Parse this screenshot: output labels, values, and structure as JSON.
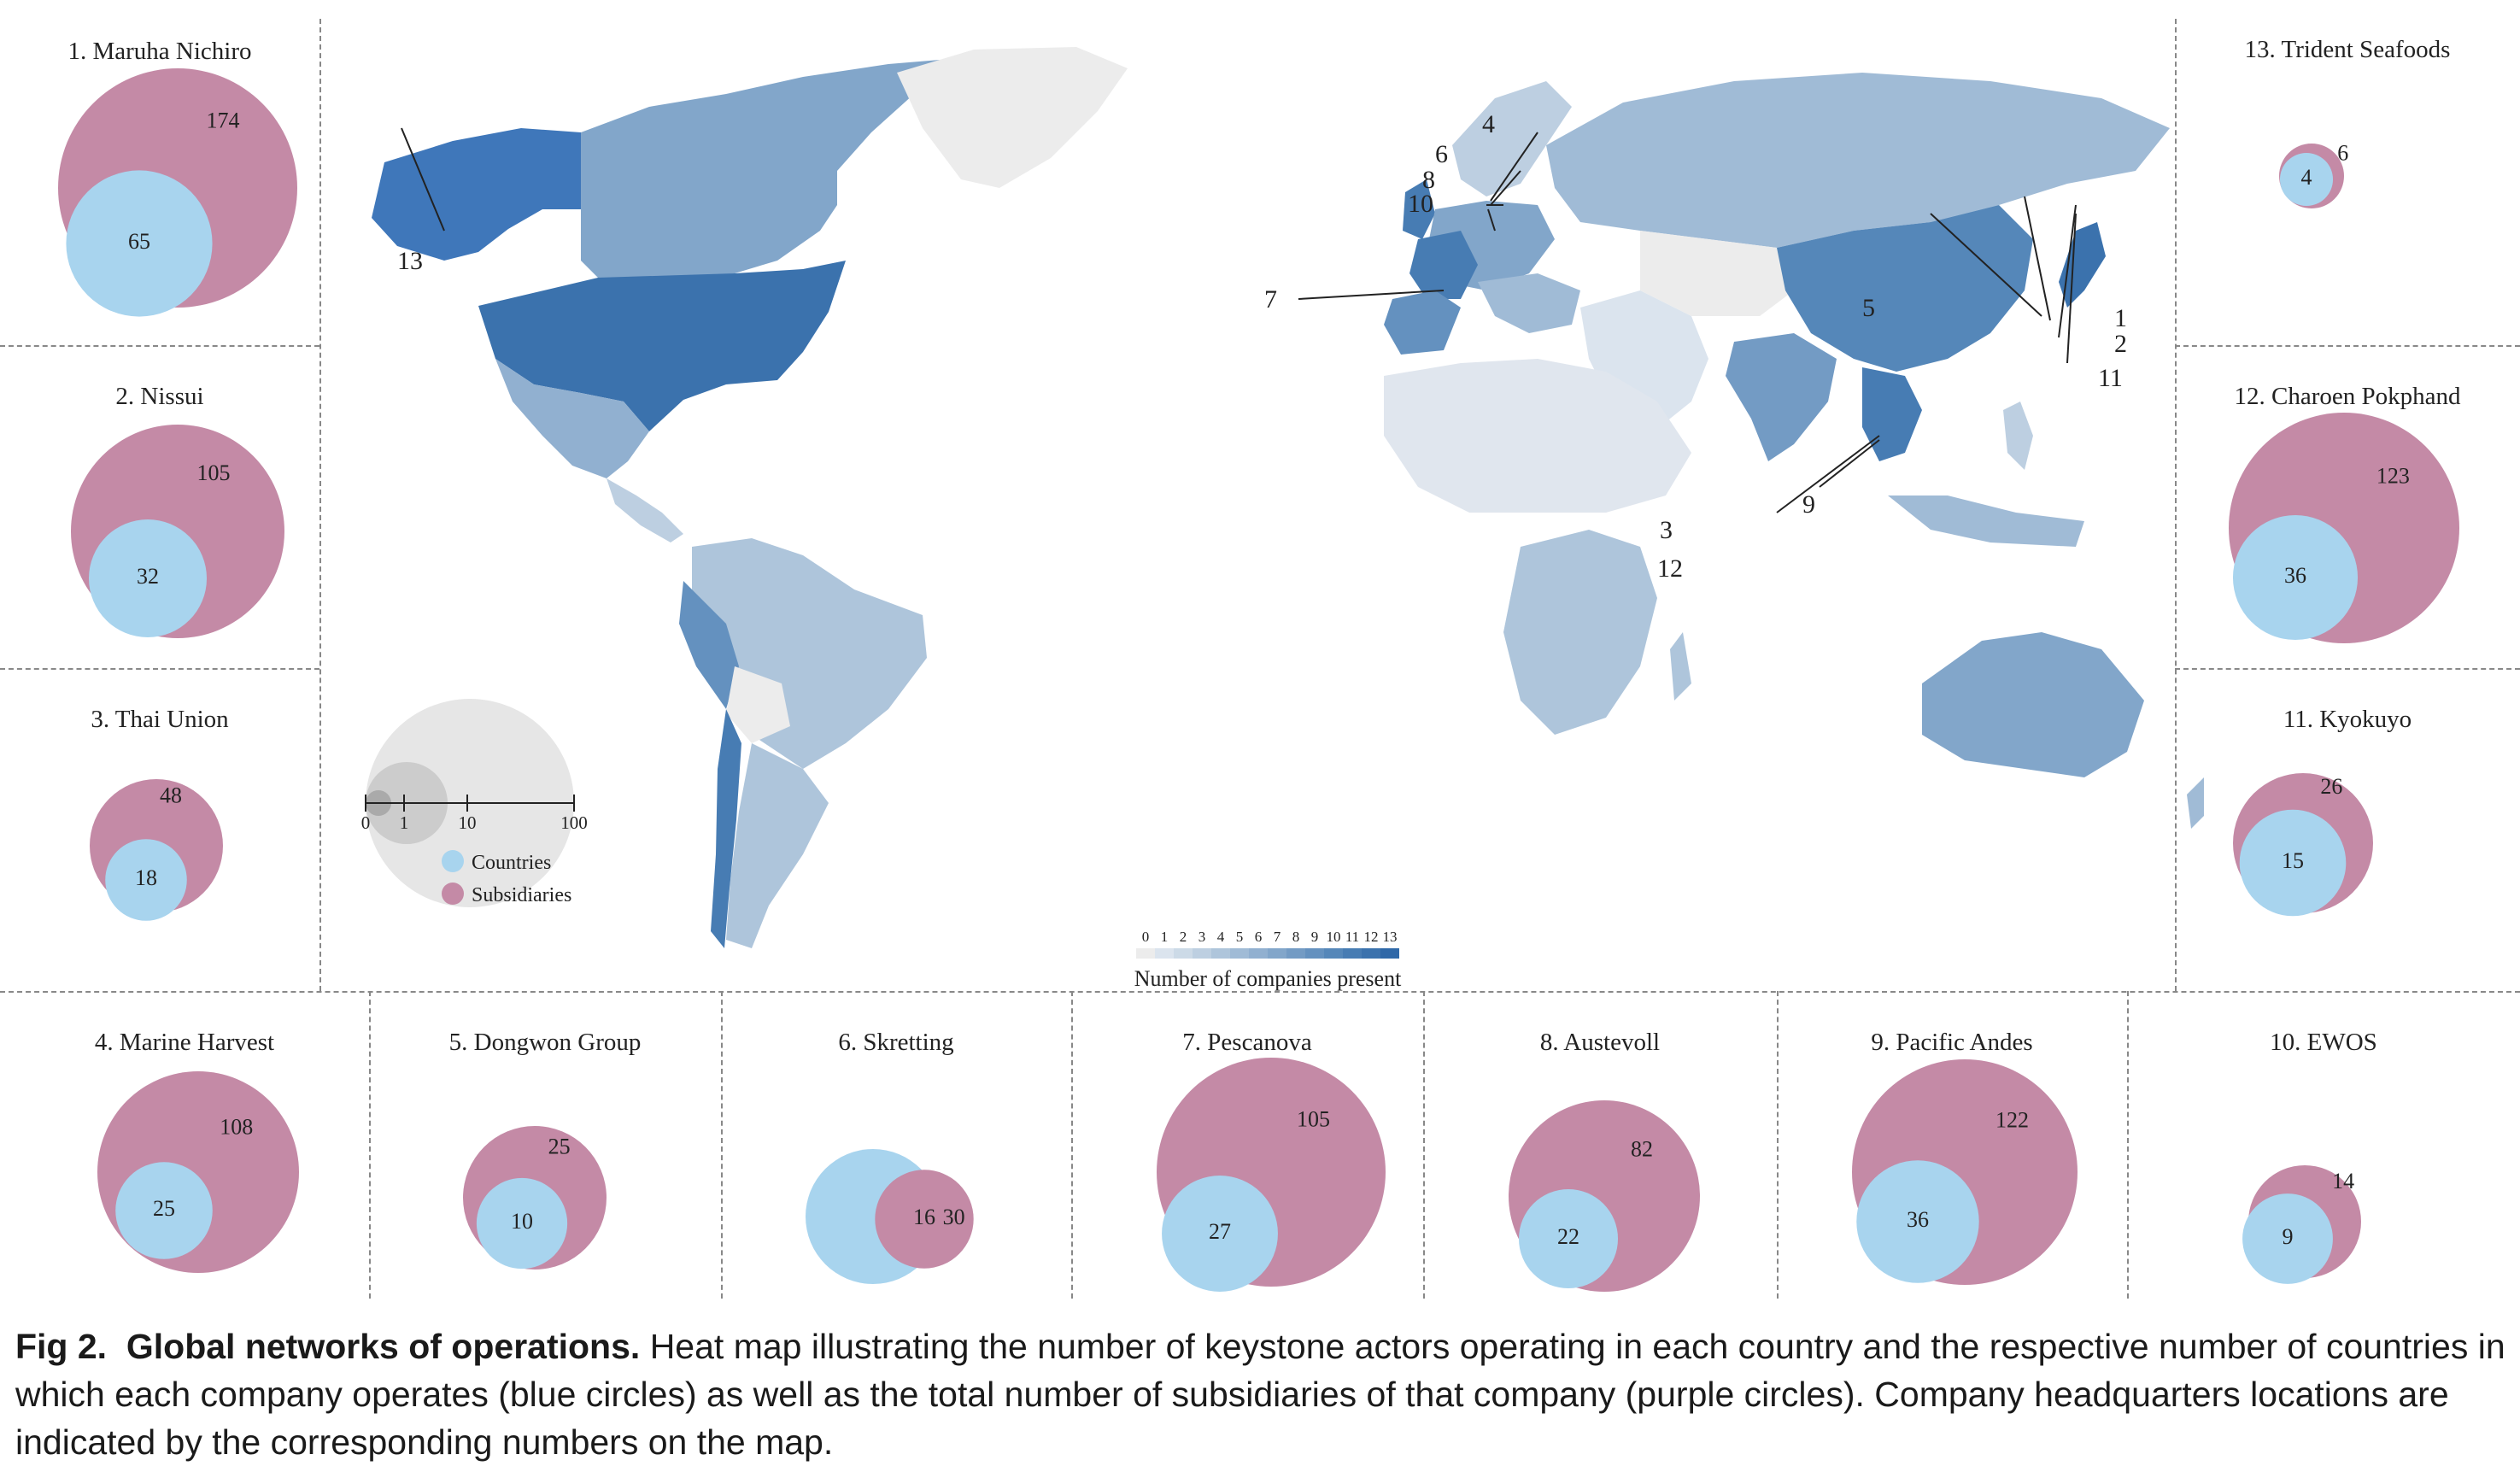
{
  "companies": [
    {
      "id": 1,
      "title": "1. Maruha Nichiro",
      "countries": 65,
      "subsidiaries": 174
    },
    {
      "id": 2,
      "title": "2. Nissui",
      "countries": 32,
      "subsidiaries": 105
    },
    {
      "id": 3,
      "title": "3. Thai Union",
      "countries": 18,
      "subsidiaries": 48
    },
    {
      "id": 4,
      "title": "4. Marine Harvest",
      "countries": 25,
      "subsidiaries": 108
    },
    {
      "id": 5,
      "title": "5. Dongwon Group",
      "countries": 10,
      "subsidiaries": 25
    },
    {
      "id": 6,
      "title": "6. Skretting",
      "countries": 30,
      "subsidiaries": 16
    },
    {
      "id": 7,
      "title": "7. Pescanova",
      "countries": 27,
      "subsidiaries": 105
    },
    {
      "id": 8,
      "title": "8. Austevoll",
      "countries": 22,
      "subsidiaries": 82
    },
    {
      "id": 9,
      "title": "9. Pacific Andes",
      "countries": 36,
      "subsidiaries": 122
    },
    {
      "id": 10,
      "title": "10. EWOS",
      "countries": 9,
      "subsidiaries": 14
    },
    {
      "id": 11,
      "title": "11. Kyokuyo",
      "countries": 15,
      "subsidiaries": 26
    },
    {
      "id": 12,
      "title": "12. Charoen Pokphand",
      "countries": 36,
      "subsidiaries": 123
    },
    {
      "id": 13,
      "title": "13. Trident Seafoods",
      "countries": 4,
      "subsidiaries": 6
    }
  ],
  "colors": {
    "countries": "#a8d4ee",
    "subsidiaries": "#c48aa6",
    "scale_light": "#e6e6e6",
    "scale_mid": "#cccccc",
    "scale_dark": "#aaaaaa",
    "colorbar": [
      "#ececec",
      "#dbe4ee",
      "#ccdae7",
      "#bdcfe1",
      "#aec5db",
      "#a0bbd6",
      "#91b0d0",
      "#82a6ca",
      "#739bc4",
      "#6491bf",
      "#5587b9",
      "#477cb3",
      "#3b72ad",
      "#2f68a8"
    ]
  },
  "map": {
    "hq_labels": [
      "1",
      "2",
      "3",
      "4",
      "5",
      "6",
      "7",
      "8",
      "9",
      "10",
      "11",
      "12",
      "13"
    ]
  },
  "size_legend": {
    "ticks": [
      "0",
      "1",
      "10",
      "100"
    ],
    "countries_label": "Countries",
    "subsidiaries_label": "Subsidiaries"
  },
  "colorbar": {
    "ticks": [
      "0",
      "1",
      "2",
      "3",
      "4",
      "5",
      "6",
      "7",
      "8",
      "9",
      "10",
      "11",
      "12",
      "13"
    ],
    "title": "Number of companies present"
  },
  "caption": {
    "label": "Fig 2.",
    "bold_title": "Global networks of operations.",
    "text": "Heat map illustrating the number of keystone actors operating in each country and the respective number of countries in which each company operates (blue circles) as well as the total number of subsidiaries of that company (purple circles). Company headquarters locations are indicated by the corresponding numbers on the map."
  }
}
